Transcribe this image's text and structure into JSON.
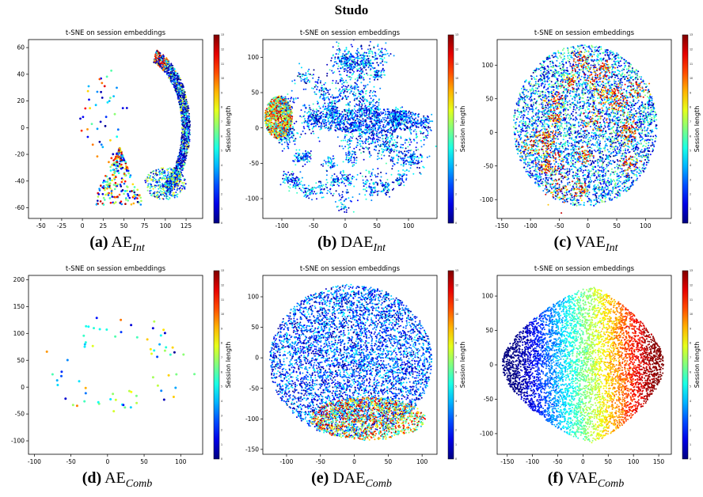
{
  "figure_title": "Studo",
  "chart_data": [
    {
      "id": "a",
      "type": "scatter",
      "title": "t-SNE on session embeddings",
      "caption_letter": "(a)",
      "caption_main": "AE",
      "caption_sub": "Int",
      "xlim": [
        -65,
        145
      ],
      "ylim": [
        -68,
        66
      ],
      "xticks": [
        -50,
        -25,
        0,
        25,
        50,
        75,
        100,
        125
      ],
      "yticks": [
        -60,
        -40,
        -20,
        0,
        20,
        40,
        60
      ],
      "colorbar_label": "Session length",
      "cmap": "jet",
      "cmin": 0,
      "cmax": 13,
      "clusters": [
        {
          "shape": "arc",
          "cx": 68,
          "cy": 0,
          "r_inner": 52,
          "r_outer": 62,
          "a0": -55,
          "a1": 70,
          "n": 1600,
          "cmin": 0,
          "cmax": 9
        },
        {
          "shape": "ellipse",
          "cx": 100,
          "cy": -42,
          "rx": 25,
          "ry": 12,
          "n": 350,
          "cmin": 0,
          "cmax": 9
        },
        {
          "shape": "triangle",
          "x0": 10,
          "x1": 75,
          "y0": -58,
          "ytop": -15,
          "apex": 45,
          "n": 250,
          "cmin": 0,
          "cmax": 13,
          "sparse": true
        },
        {
          "shape": "ellipse",
          "cx": 25,
          "cy": 5,
          "rx": 30,
          "ry": 40,
          "n": 45,
          "cmin": 0,
          "cmax": 12,
          "sparse": true
        }
      ]
    },
    {
      "id": "b",
      "type": "scatter",
      "title": "t-SNE on session embeddings",
      "caption_letter": "(b)",
      "caption_main": "DAE",
      "caption_sub": "Int",
      "xlim": [
        -130,
        145
      ],
      "ylim": [
        -128,
        125
      ],
      "xticks": [
        -100,
        -50,
        0,
        50,
        100
      ],
      "yticks": [
        -100,
        -50,
        0,
        50,
        100
      ],
      "colorbar_label": "Session length",
      "cmap": "jet",
      "cmin": 0,
      "cmax": 13,
      "clusters": [
        {
          "shape": "ellipse",
          "cx": -105,
          "cy": 15,
          "rx": 22,
          "ry": 30,
          "n": 1100,
          "cmin": 4,
          "cmax": 13
        },
        {
          "shape": "blobs",
          "cx": 0,
          "cy": 5,
          "rx": 130,
          "ry": 110,
          "count": 60,
          "n": 2800,
          "cmin": 0,
          "cmax": 6
        },
        {
          "shape": "ellipse",
          "cx": 40,
          "cy": 10,
          "rx": 90,
          "ry": 18,
          "n": 700,
          "cmin": 0,
          "cmax": 5
        }
      ]
    },
    {
      "id": "c",
      "type": "scatter",
      "title": "t-SNE on session embeddings",
      "caption_letter": "(c)",
      "caption_main": "VAE",
      "caption_sub": "Int",
      "xlim": [
        -158,
        145
      ],
      "ylim": [
        -128,
        138
      ],
      "xticks": [
        -150,
        -100,
        -50,
        0,
        50,
        100
      ],
      "yticks": [
        -100,
        -50,
        0,
        50,
        100
      ],
      "colorbar_label": "Session length",
      "cmap": "jet",
      "cmin": 0,
      "cmax": 13,
      "clusters": [
        {
          "shape": "ellipse",
          "cx": -5,
          "cy": 10,
          "rx": 125,
          "ry": 120,
          "n": 4500,
          "cmin": 0,
          "cmax": 7
        },
        {
          "shape": "blobs",
          "cx": -5,
          "cy": 10,
          "rx": 115,
          "ry": 110,
          "count": 22,
          "n": 900,
          "cmin": 8,
          "cmax": 13
        }
      ]
    },
    {
      "id": "d",
      "type": "scatter",
      "title": "t-SNE on session embeddings",
      "caption_letter": "(d)",
      "caption_main": "AE",
      "caption_sub": "Comb",
      "xlim": [
        -108,
        130
      ],
      "ylim": [
        -125,
        208
      ],
      "xticks": [
        -100,
        -50,
        0,
        50,
        100
      ],
      "yticks": [
        -100,
        -50,
        0,
        50,
        100,
        150,
        200
      ],
      "colorbar_label": "Session length",
      "cmap": "jet",
      "cmin": 0,
      "cmax": 13,
      "clusters": [
        {
          "shape": "ring",
          "cx": 15,
          "cy": 30,
          "rx": 105,
          "ry": 150,
          "n": 70,
          "cmin": 0,
          "cmax": 10,
          "sparse": true
        }
      ]
    },
    {
      "id": "e",
      "type": "scatter",
      "title": "t-SNE on session embeddings",
      "caption_letter": "(e)",
      "caption_main": "DAE",
      "caption_sub": "Comb",
      "xlim": [
        -135,
        122
      ],
      "ylim": [
        -158,
        135
      ],
      "xticks": [
        -100,
        -50,
        0,
        50,
        100
      ],
      "yticks": [
        -150,
        -100,
        -50,
        0,
        50,
        100
      ],
      "colorbar_label": "Session length",
      "cmap": "jet",
      "cmin": 0,
      "cmax": 13,
      "clusters": [
        {
          "shape": "ellipse",
          "cx": -5,
          "cy": -5,
          "rx": 120,
          "ry": 125,
          "n": 5000,
          "cmin": 0,
          "cmax": 5
        },
        {
          "shape": "ellipse",
          "cx": 20,
          "cy": -100,
          "rx": 85,
          "ry": 35,
          "n": 1200,
          "cmin": 4,
          "cmax": 13
        }
      ]
    },
    {
      "id": "f",
      "type": "scatter",
      "title": "t-SNE on session embeddings",
      "caption_letter": "(f)",
      "caption_main": "VAE",
      "caption_sub": "Comb",
      "xlim": [
        -170,
        175
      ],
      "ylim": [
        -130,
        130
      ],
      "xticks": [
        -150,
        -100,
        -50,
        0,
        50,
        100,
        150
      ],
      "yticks": [
        -100,
        -50,
        0,
        50,
        100
      ],
      "colorbar_label": "Session length",
      "cmap": "jet",
      "cmin": 0,
      "cmax": 13,
      "clusters": [
        {
          "shape": "gradient",
          "cx": 0,
          "cy": 0,
          "rx": 160,
          "ry": 115,
          "n": 6000
        }
      ]
    }
  ]
}
